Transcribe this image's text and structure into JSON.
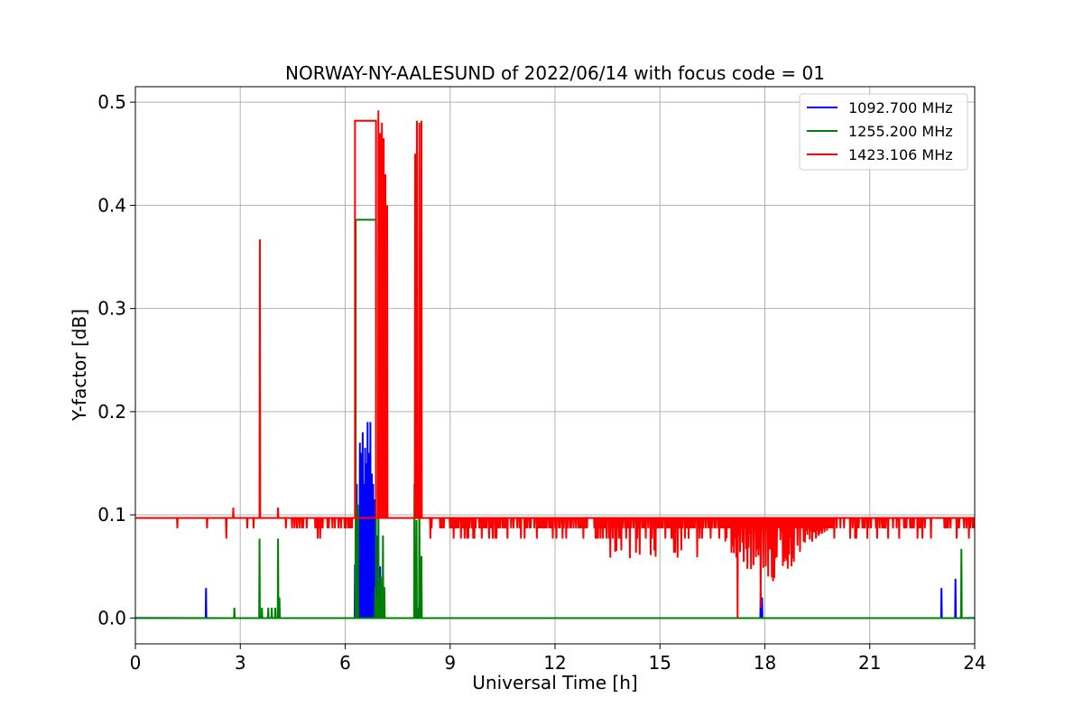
{
  "chart_data": {
    "type": "line",
    "title": "NORWAY-NY-AALESUND of 2022/06/14 with focus code = 01",
    "xlabel": "Universal Time [h]",
    "ylabel": "Y-factor [dB]",
    "xlim": [
      0,
      24
    ],
    "ylim": [
      -0.025,
      0.515
    ],
    "xticks": [
      0,
      3,
      6,
      9,
      12,
      15,
      18,
      21,
      24
    ],
    "yticks": [
      0.0,
      0.1,
      0.2,
      0.3,
      0.4,
      0.5
    ],
    "xtick_labels": [
      "0",
      "3",
      "6",
      "9",
      "12",
      "15",
      "18",
      "21",
      "24"
    ],
    "ytick_labels": [
      "0.0",
      "0.1",
      "0.2",
      "0.3",
      "0.4",
      "0.5"
    ],
    "grid": true,
    "legend_position": "top-right",
    "series": [
      {
        "name": "1092.700 MHz",
        "color": "#0000ff",
        "baseline": 0.0,
        "spikes": [
          {
            "x": 2.02,
            "y": 0.029
          },
          {
            "x": 6.28,
            "y": 0.052
          },
          {
            "x": 6.33,
            "y": 0.13
          },
          {
            "x": 6.38,
            "y": 0.025
          },
          {
            "x": 6.42,
            "y": 0.17
          },
          {
            "x": 6.46,
            "y": 0.16
          },
          {
            "x": 6.5,
            "y": 0.18
          },
          {
            "x": 6.53,
            "y": 0.13
          },
          {
            "x": 6.57,
            "y": 0.165
          },
          {
            "x": 6.6,
            "y": 0.15
          },
          {
            "x": 6.64,
            "y": 0.19
          },
          {
            "x": 6.68,
            "y": 0.16
          },
          {
            "x": 6.72,
            "y": 0.19
          },
          {
            "x": 6.76,
            "y": 0.14
          },
          {
            "x": 6.8,
            "y": 0.13
          },
          {
            "x": 6.84,
            "y": 0.115
          },
          {
            "x": 6.9,
            "y": 0.08
          },
          {
            "x": 7.0,
            "y": 0.05
          },
          {
            "x": 7.1,
            "y": 0.03
          },
          {
            "x": 8.03,
            "y": 0.02
          },
          {
            "x": 8.1,
            "y": 0.01
          },
          {
            "x": 17.88,
            "y": 0.025
          },
          {
            "x": 17.92,
            "y": 0.02
          },
          {
            "x": 23.05,
            "y": 0.029
          },
          {
            "x": 23.45,
            "y": 0.038
          }
        ]
      },
      {
        "name": "1255.200 MHz",
        "color": "#008000",
        "baseline": 0.0,
        "spikes": [
          {
            "x": 2.83,
            "y": 0.01
          },
          {
            "x": 3.55,
            "y": 0.077
          },
          {
            "x": 3.62,
            "y": 0.01
          },
          {
            "x": 3.8,
            "y": 0.01
          },
          {
            "x": 3.9,
            "y": 0.01
          },
          {
            "x": 4.0,
            "y": 0.01
          },
          {
            "x": 4.08,
            "y": 0.077
          },
          {
            "x": 4.12,
            "y": 0.02
          },
          {
            "x": 6.3,
            "y": 0.1
          },
          {
            "x": 6.36,
            "y": 0.11
          },
          {
            "x": 6.86,
            "y": 0.03
          },
          {
            "x": 6.9,
            "y": 0.02
          },
          {
            "x": 6.95,
            "y": 0.098
          },
          {
            "x": 7.02,
            "y": 0.04
          },
          {
            "x": 7.08,
            "y": 0.08
          },
          {
            "x": 7.12,
            "y": 0.03
          },
          {
            "x": 7.98,
            "y": 0.13
          },
          {
            "x": 8.04,
            "y": 0.095
          },
          {
            "x": 8.12,
            "y": 0.14
          },
          {
            "x": 8.18,
            "y": 0.06
          },
          {
            "x": 23.62,
            "y": 0.067
          }
        ],
        "blocks": [
          {
            "x0": 6.3,
            "x1": 6.88,
            "y": 0.386
          }
        ]
      },
      {
        "name": "1423.106 MHz",
        "color": "#ff0000",
        "baseline": 0.097,
        "spikes_up": [
          {
            "x": 2.8,
            "y": 0.107
          },
          {
            "x": 3.56,
            "y": 0.367
          },
          {
            "x": 4.08,
            "y": 0.107
          },
          {
            "x": 6.95,
            "y": 0.492
          },
          {
            "x": 7.0,
            "y": 0.47
          },
          {
            "x": 7.05,
            "y": 0.48
          },
          {
            "x": 7.1,
            "y": 0.465
          },
          {
            "x": 7.15,
            "y": 0.43
          },
          {
            "x": 7.2,
            "y": 0.4
          },
          {
            "x": 8.0,
            "y": 0.45
          },
          {
            "x": 8.05,
            "y": 0.482
          },
          {
            "x": 8.12,
            "y": 0.48
          },
          {
            "x": 8.18,
            "y": 0.482
          }
        ],
        "spikes_down": [
          {
            "x": 1.2,
            "y": 0.087
          },
          {
            "x": 2.05,
            "y": 0.087
          },
          {
            "x": 2.6,
            "y": 0.077
          },
          {
            "x": 3.2,
            "y": 0.087
          },
          {
            "x": 3.38,
            "y": 0.087
          },
          {
            "x": 17.22,
            "y": 0.0
          },
          {
            "x": 17.88,
            "y": 0.01
          }
        ],
        "blocks": [
          {
            "x0": 6.28,
            "x1": 6.88,
            "y": 0.482
          }
        ],
        "noise_region": {
          "x0": 4.2,
          "x1": 24.0
        }
      }
    ]
  }
}
